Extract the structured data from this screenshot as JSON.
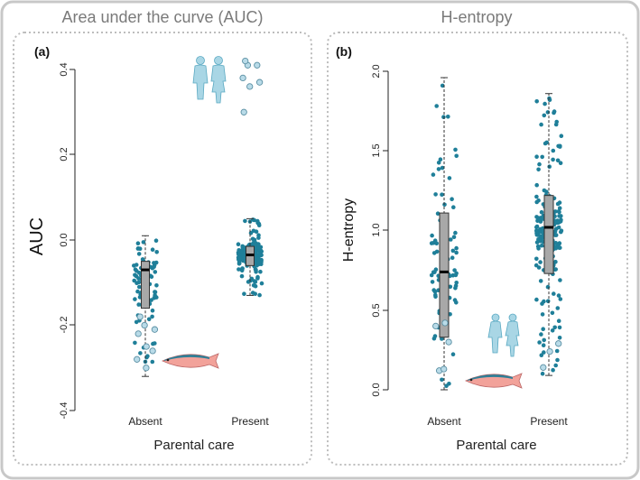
{
  "colors": {
    "point": "#1f7f99",
    "point_open": "#b9dbe8",
    "box": "#a8a8a8",
    "frame": "#c8c8c8",
    "human": "#a9d6e5",
    "fish_body": "#f2a29a",
    "fish_back": "#2f7f97"
  },
  "icons": [
    "human-figures-icon",
    "salmon-fish-icon"
  ],
  "panels": [
    {
      "section_title": "Area under the curve (AUC)",
      "panel_label": "(a)",
      "xlabel": "Parental care",
      "ylabel": "AUC",
      "categories": [
        "Absent",
        "Present"
      ],
      "yticks": [
        "-0.4",
        "-0.2",
        "0.0",
        "0.2",
        "0.4"
      ]
    },
    {
      "section_title": "H-entropy",
      "panel_label": "(b)",
      "xlabel": "Parental care",
      "ylabel": "H-entropy",
      "categories": [
        "Absent",
        "Present"
      ],
      "yticks": [
        "0.0",
        "0.5",
        "1.0",
        "1.5",
        "2.0"
      ]
    }
  ],
  "chart_data": [
    {
      "type": "box",
      "title": "Area under the curve (AUC)",
      "xlabel": "Parental care",
      "ylabel": "AUC",
      "categories": [
        "Absent",
        "Present"
      ],
      "ylim": [
        -0.4,
        0.4
      ],
      "yticks": [
        -0.4,
        -0.2,
        0.0,
        0.2,
        0.4
      ],
      "boxes": [
        {
          "name": "Absent",
          "whisker_low": -0.32,
          "q1": -0.16,
          "median": -0.07,
          "q3": -0.05,
          "whisker_high": 0.01
        },
        {
          "name": "Present",
          "whisker_low": -0.13,
          "q1": -0.06,
          "median": -0.035,
          "q3": -0.015,
          "whisker_high": 0.05
        }
      ],
      "outliers": [
        {
          "name": "Absent",
          "values": [
            -0.18,
            -0.2,
            -0.21,
            -0.22,
            -0.25,
            -0.26,
            -0.28,
            -0.3
          ]
        },
        {
          "name": "Present",
          "values": [
            0.3,
            0.36,
            0.37,
            0.38,
            0.41,
            0.41,
            0.42
          ]
        }
      ],
      "points": {
        "Absent": 80,
        "Present": 200
      }
    },
    {
      "type": "box",
      "title": "H-entropy",
      "xlabel": "Parental care",
      "ylabel": "H-entropy",
      "categories": [
        "Absent",
        "Present"
      ],
      "ylim": [
        0.0,
        2.0
      ],
      "yticks": [
        0.0,
        0.5,
        1.0,
        1.5,
        2.0
      ],
      "boxes": [
        {
          "name": "Absent",
          "whisker_low": 0.0,
          "q1": 0.33,
          "median": 0.74,
          "q3": 1.11,
          "whisker_high": 1.96
        },
        {
          "name": "Present",
          "whisker_low": 0.09,
          "q1": 0.73,
          "median": 1.02,
          "q3": 1.22,
          "whisker_high": 1.86
        }
      ],
      "outliers": [
        {
          "name": "Absent",
          "values": [
            0.12,
            0.13,
            0.3,
            0.4,
            0.42
          ]
        },
        {
          "name": "Present",
          "values": [
            0.14,
            0.24,
            0.29
          ]
        }
      ],
      "points": {
        "Absent": 90,
        "Present": 220
      }
    }
  ]
}
